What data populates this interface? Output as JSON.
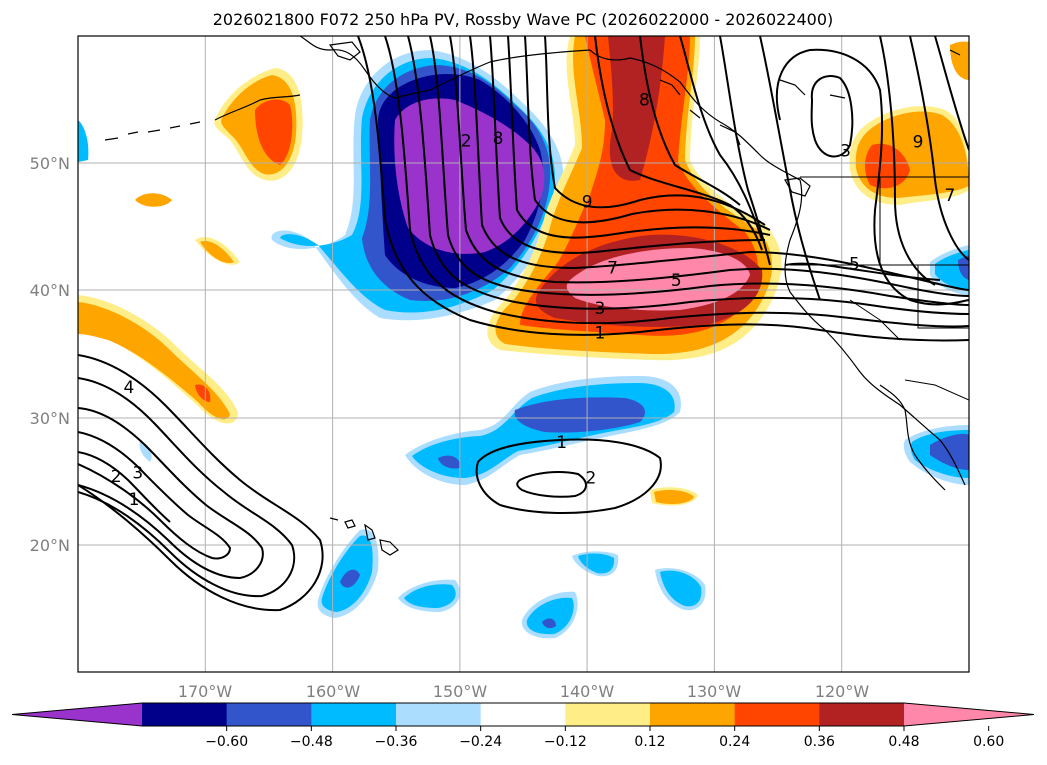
{
  "title": "2026021800 F072 250 hPa PV, Rossby Wave PC (2026022000 - 2026022400)",
  "map": {
    "lon_range": [
      -180,
      -110
    ],
    "lat_range": [
      10,
      60
    ],
    "lat_labels": [
      "20°N",
      "30°N",
      "40°N",
      "50°N"
    ],
    "lon_labels": [
      "170°W",
      "160°W",
      "150°W",
      "140°W",
      "130°W",
      "120°W"
    ],
    "grid": true,
    "axis_label_color": "#808080"
  },
  "colorbar": {
    "colors": [
      "#9933cc",
      "#00008b",
      "#3355cc",
      "#00bbff",
      "#aaddff",
      "#ffffff",
      "#ffee88",
      "#ffa500",
      "#ff4500",
      "#b22222",
      "#ff88aa"
    ],
    "tick_labels": [
      "−0.60",
      "−0.48",
      "−0.36",
      "−0.24",
      "−0.12",
      "0.12",
      "0.24",
      "0.36",
      "0.48",
      "0.60"
    ],
    "extend": "both"
  },
  "contour_labels": [
    {
      "text": "2",
      "lon": -149.5,
      "lat": 51.8
    },
    {
      "text": "8",
      "lon": -147.0,
      "lat": 52.0
    },
    {
      "text": "8",
      "lon": -135.5,
      "lat": 55.0
    },
    {
      "text": "9",
      "lon": -140.0,
      "lat": 47.0
    },
    {
      "text": "7",
      "lon": -138.0,
      "lat": 41.8
    },
    {
      "text": "5",
      "lon": -133.0,
      "lat": 40.8
    },
    {
      "text": "3",
      "lon": -139.0,
      "lat": 38.6
    },
    {
      "text": "1",
      "lon": -139.0,
      "lat": 36.7
    },
    {
      "text": "3",
      "lon": -119.7,
      "lat": 51.0
    },
    {
      "text": "9",
      "lon": -114.0,
      "lat": 51.7
    },
    {
      "text": "7",
      "lon": -111.5,
      "lat": 47.5
    },
    {
      "text": "5",
      "lon": -119.0,
      "lat": 42.1
    },
    {
      "text": "4",
      "lon": -176.0,
      "lat": 32.4
    },
    {
      "text": "3",
      "lon": -175.3,
      "lat": 25.7
    },
    {
      "text": "2",
      "lon": -177.0,
      "lat": 25.4
    },
    {
      "text": "1",
      "lon": -175.6,
      "lat": 23.6
    },
    {
      "text": "1",
      "lon": -142.0,
      "lat": 28.1
    },
    {
      "text": "2",
      "lon": -139.7,
      "lat": 25.3
    }
  ]
}
